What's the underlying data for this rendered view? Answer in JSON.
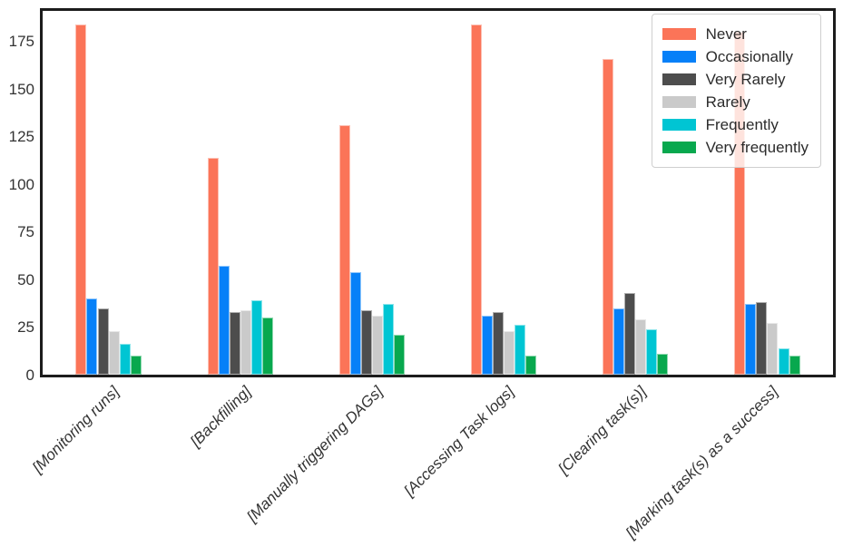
{
  "figure": {
    "background": "#ffffff",
    "spine_color": "#1c1c1c",
    "tick_label_color": "#333333"
  },
  "chart_data": {
    "type": "bar",
    "title": "",
    "xlabel": "",
    "ylabel": "",
    "grid": false,
    "legend_position": "upper right",
    "categories": [
      "[Monitoring runs]",
      "[Backfilling]",
      "[Manually triggering DAGs]",
      "[Accessing Task logs]",
      "[Clearing task(s)]",
      "[Marking task(s) as a success]"
    ],
    "yticks": [
      0,
      25,
      50,
      75,
      100,
      125,
      150,
      175
    ],
    "ylim": [
      0,
      191
    ],
    "bar_group_width_fraction": 0.5,
    "series": [
      {
        "name": "Never",
        "color": "#fb7458",
        "values": [
          184,
          114,
          131,
          184,
          166,
          180
        ]
      },
      {
        "name": "Occasionally",
        "color": "#0680f8",
        "values": [
          40,
          57,
          54,
          31,
          35,
          37
        ]
      },
      {
        "name": "Very Rarely",
        "color": "#4d4d4d",
        "values": [
          35,
          33,
          34,
          33,
          43,
          38
        ]
      },
      {
        "name": "Rarely",
        "color": "#cacaca",
        "values": [
          23,
          34,
          31,
          23,
          29,
          27
        ]
      },
      {
        "name": "Frequently",
        "color": "#00c5d3",
        "values": [
          16,
          39,
          37,
          26,
          24,
          14
        ]
      },
      {
        "name": "Very frequently",
        "color": "#08a84e",
        "values": [
          10,
          30,
          21,
          10,
          11,
          10
        ]
      }
    ]
  }
}
